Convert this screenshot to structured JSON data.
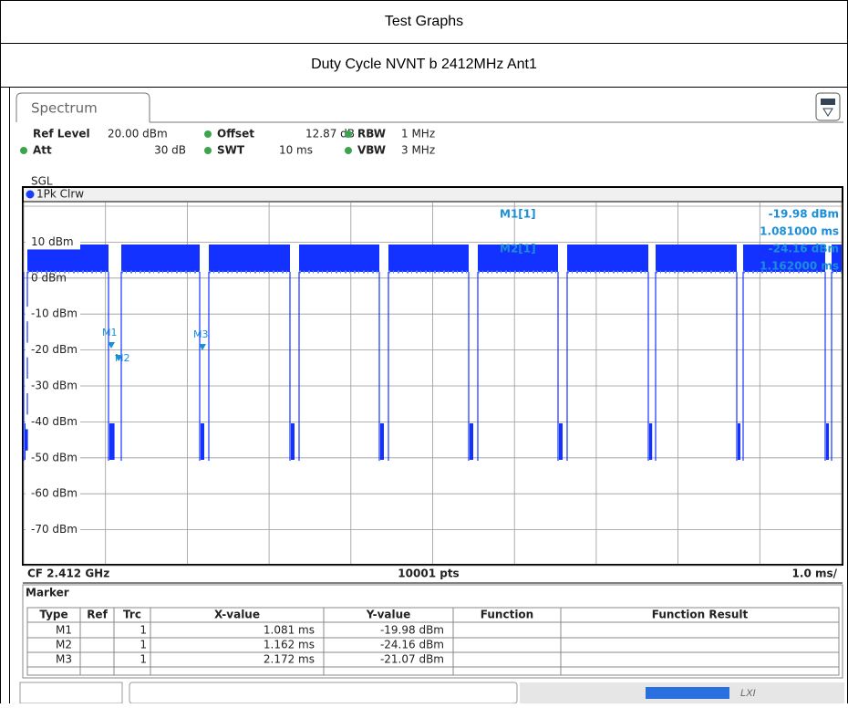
{
  "header": {
    "title": "Test Graphs",
    "subtitle": "Duty Cycle NVNT b 2412MHz Ant1"
  },
  "instrument": {
    "tab": "Spectrum",
    "settings": [
      {
        "label": "Ref Level",
        "value": "20.00 dBm"
      },
      {
        "label": "Offset",
        "value": "12.87 dB"
      },
      {
        "label": "RBW",
        "value": "1 MHz"
      },
      {
        "label": "Att",
        "value": "30 dB"
      },
      {
        "label": "SWT",
        "value": "10 ms"
      },
      {
        "label": "VBW",
        "value": "3 MHz"
      }
    ],
    "mode": "SGL",
    "trace": "1Pk Clrw"
  },
  "y_labels": [
    "10 dBm",
    "0 dBm",
    "-10 dBm",
    "-20 dBm",
    "-30 dBm",
    "-40 dBm",
    "-50 dBm",
    "-60 dBm",
    "-70 dBm"
  ],
  "marker_info": [
    {
      "name": "M1[1]",
      "level": "-19.98 dBm",
      "time": "1.081000 ms"
    },
    {
      "name": "M2[1]",
      "level": "-24.16 dBm",
      "time": "1.162000 ms"
    }
  ],
  "footer": {
    "center": "CF 2.412 GHz",
    "points": "10001 pts",
    "scale": "1.0 ms/"
  },
  "marker_table": {
    "title": "Marker",
    "columns": [
      "Type",
      "Ref",
      "Trc",
      "X-value",
      "Y-value",
      "Function",
      "Function Result"
    ],
    "rows": [
      {
        "type": "M1",
        "trc": "1",
        "x": "1.081 ms",
        "y": "-19.98 dBm"
      },
      {
        "type": "M2",
        "trc": "1",
        "x": "1.162 ms",
        "y": "-24.16 dBm"
      },
      {
        "type": "M3",
        "trc": "1",
        "x": "2.172 ms",
        "y": "-21.07 dBm"
      }
    ]
  }
}
